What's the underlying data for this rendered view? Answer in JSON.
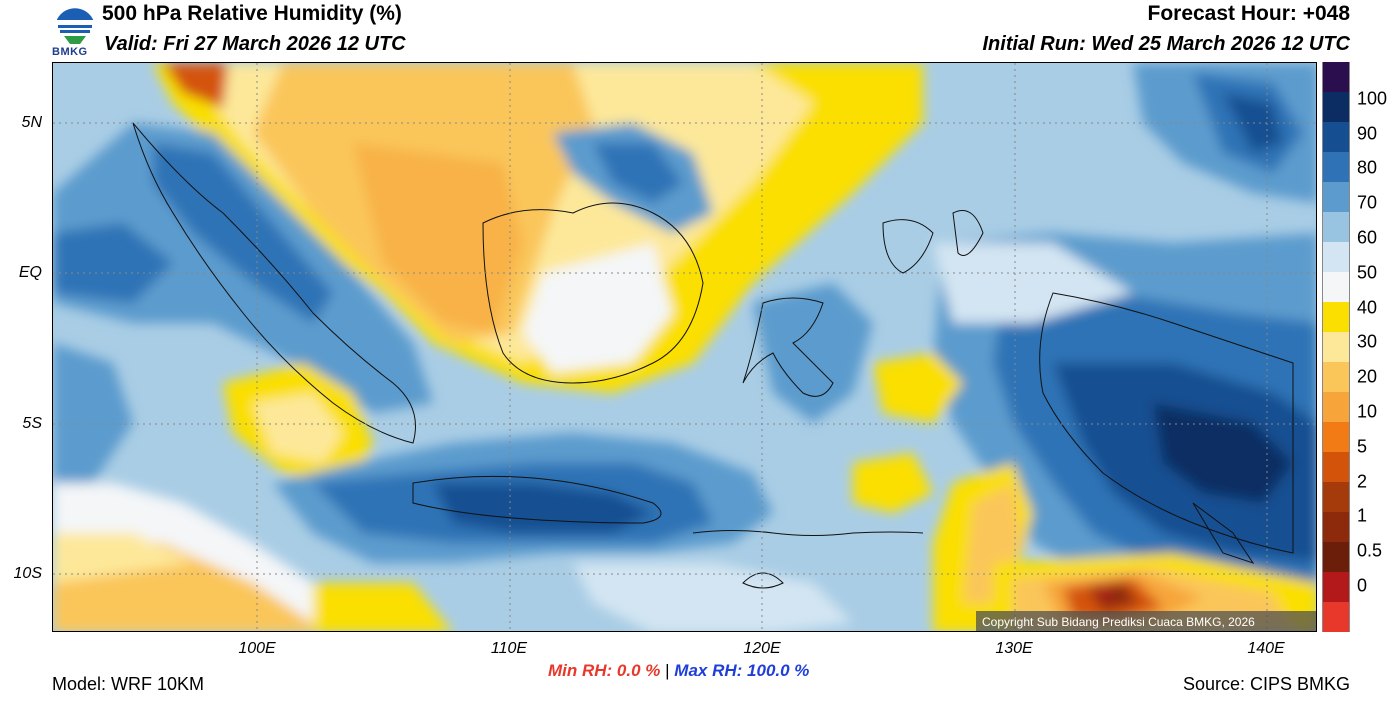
{
  "header": {
    "title": "500 hPa Relative Humidity (%)",
    "valid": "Valid: Fri 27 March 2026 12 UTC",
    "forecast_hour": "Forecast Hour: +048",
    "initial_run": "Initial Run: Wed 25 March 2026 12 UTC",
    "logo_text": "BMKG"
  },
  "map": {
    "lat_labels": [
      "5N",
      "EQ",
      "5S",
      "10S"
    ],
    "lon_labels": [
      "100E",
      "110E",
      "120E",
      "130E",
      "140E"
    ],
    "copyright": "Copyright Sub Bidang Prediksi Cuaca BMKG, 2026"
  },
  "colorbar": {
    "labels": [
      "100",
      "90",
      "80",
      "70",
      "60",
      "50",
      "40",
      "30",
      "20",
      "10",
      "5",
      "2",
      "1",
      "0.5",
      "0"
    ],
    "colors": [
      "#2a0e4e",
      "#0b2d63",
      "#154f92",
      "#2f73b6",
      "#5c9bcd",
      "#99c4e1",
      "#d3e5f2",
      "#f4f6f8",
      "#fadf00",
      "#fde89a",
      "#fac65a",
      "#f7a53a",
      "#f37b15",
      "#d4530a",
      "#a53a0b",
      "#8c2a0b",
      "#6b1f0b",
      "#b3181a",
      "#e8382b"
    ]
  },
  "footer": {
    "min_rh": "Min RH:   0.0 %",
    "separator": "|",
    "max_rh": "Max RH: 100.0 %",
    "model": "Model: WRF 10KM",
    "source": "Source: CIPS BMKG"
  }
}
